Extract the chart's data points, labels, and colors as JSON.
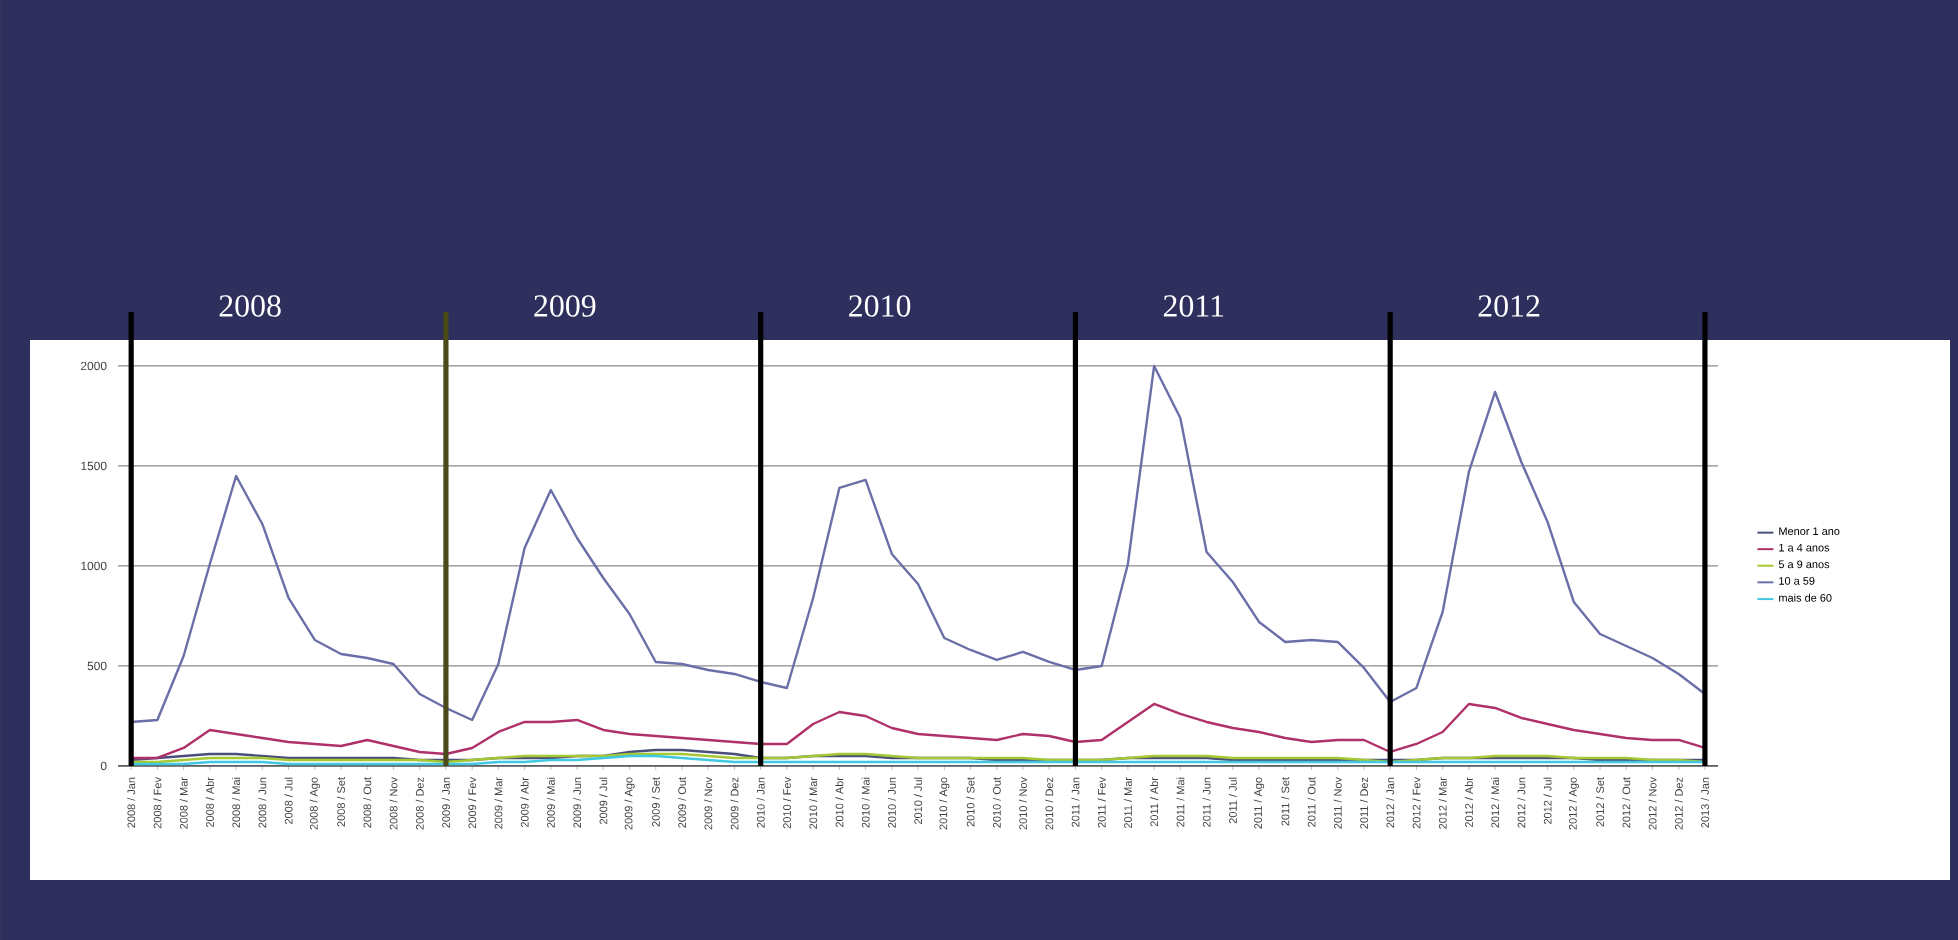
{
  "chart_data": {
    "type": "line",
    "categories": [
      "2008 / Jan",
      "2008 / Fev",
      "2008 / Mar",
      "2008 / Abr",
      "2008 / Mai",
      "2008 / Jun",
      "2008 / Jul",
      "2008 / Ago",
      "2008 / Set",
      "2008 / Out",
      "2008 / Nov",
      "2008 / Dez",
      "2009 / Jan",
      "2009 / Fev",
      "2009 / Mar",
      "2009 / Abr",
      "2009 / Mai",
      "2009 / Jun",
      "2009 / Jul",
      "2009 / Ago",
      "2009 / Set",
      "2009 / Out",
      "2009 / Nov",
      "2009 / Dez",
      "2010 / Jan",
      "2010 / Fev",
      "2010 / Mar",
      "2010 / Abr",
      "2010 / Mai",
      "2010 / Jun",
      "2010 / Jul",
      "2010 / Ago",
      "2010 / Set",
      "2010 / Out",
      "2010 / Nov",
      "2010 / Dez",
      "2011 / Jan",
      "2011 / Fev",
      "2011 / Mar",
      "2011 / Abr",
      "2011 / Mai",
      "2011 / Jun",
      "2011 / Jul",
      "2011 / Ago",
      "2011 / Set",
      "2011 / Out",
      "2011 / Nov",
      "2011 / Dez",
      "2012 / Jan",
      "2012 / Fev",
      "2012 / Mar",
      "2012 / Abr",
      "2012 / Mai",
      "2012 / Jun",
      "2012 / Jul",
      "2012 / Ago",
      "2012 / Set",
      "2012 / Out",
      "2012 / Nov",
      "2012 / Dez",
      "2013 / Jan"
    ],
    "series": [
      {
        "name": "Menor 1 ano",
        "color": "#4a4f7a",
        "values": [
          30,
          40,
          50,
          60,
          60,
          50,
          40,
          40,
          40,
          40,
          40,
          30,
          30,
          30,
          40,
          40,
          40,
          50,
          50,
          70,
          80,
          80,
          70,
          60,
          40,
          40,
          50,
          50,
          50,
          40,
          40,
          40,
          40,
          30,
          30,
          30,
          30,
          30,
          40,
          40,
          40,
          40,
          30,
          30,
          30,
          30,
          30,
          30,
          30,
          30,
          40,
          40,
          40,
          40,
          40,
          40,
          30,
          30,
          30,
          30,
          30
        ]
      },
      {
        "name": "1 a 4 anos",
        "color": "#b0306a",
        "values": [
          40,
          40,
          90,
          180,
          160,
          140,
          120,
          110,
          100,
          130,
          100,
          70,
          60,
          90,
          170,
          220,
          220,
          230,
          180,
          160,
          150,
          140,
          130,
          120,
          110,
          110,
          210,
          270,
          250,
          190,
          160,
          150,
          140,
          130,
          160,
          150,
          120,
          130,
          220,
          310,
          260,
          220,
          190,
          170,
          140,
          120,
          130,
          130,
          70,
          110,
          170,
          310,
          290,
          240,
          210,
          180,
          160,
          140,
          130,
          130,
          90
        ]
      },
      {
        "name": "5 a 9 anos",
        "color": "#a6c832",
        "values": [
          20,
          20,
          30,
          40,
          40,
          40,
          30,
          30,
          30,
          30,
          30,
          30,
          20,
          30,
          40,
          50,
          50,
          50,
          50,
          60,
          60,
          60,
          50,
          40,
          40,
          40,
          50,
          60,
          60,
          50,
          40,
          40,
          40,
          40,
          40,
          30,
          30,
          30,
          40,
          50,
          50,
          50,
          40,
          40,
          40,
          40,
          40,
          30,
          20,
          30,
          40,
          40,
          50,
          50,
          50,
          40,
          40,
          40,
          30,
          30,
          20
        ]
      },
      {
        "name": "10 a 59",
        "color": "#6b6fa8",
        "values": [
          220,
          230,
          550,
          1010,
          1450,
          1210,
          840,
          630,
          560,
          540,
          510,
          360,
          290,
          230,
          510,
          1090,
          1380,
          1140,
          940,
          760,
          520,
          510,
          480,
          460,
          420,
          390,
          840,
          1390,
          1430,
          1060,
          910,
          640,
          580,
          530,
          570,
          520,
          480,
          500,
          1010,
          2000,
          1740,
          1070,
          920,
          720,
          620,
          630,
          620,
          490,
          320,
          390,
          770,
          1470,
          1870,
          1520,
          1220,
          820,
          660,
          600,
          540,
          460,
          360
        ]
      },
      {
        "name": "mais de 60",
        "color": "#40c8e0",
        "values": [
          10,
          10,
          10,
          20,
          20,
          20,
          10,
          10,
          10,
          10,
          10,
          10,
          10,
          10,
          20,
          20,
          30,
          30,
          40,
          50,
          50,
          40,
          30,
          20,
          20,
          20,
          20,
          20,
          20,
          20,
          20,
          20,
          20,
          20,
          20,
          20,
          20,
          20,
          20,
          20,
          20,
          20,
          20,
          20,
          20,
          20,
          20,
          20,
          20,
          20,
          20,
          20,
          20,
          20,
          20,
          20,
          20,
          20,
          20,
          20,
          20
        ]
      }
    ],
    "ylim": [
      0,
      2000
    ],
    "yticks": [
      0,
      500,
      1000,
      1500,
      2000
    ],
    "grid": "y",
    "legend": "right",
    "marker": "none",
    "line_style": "solid",
    "ref_lines": [
      {
        "axis": "x",
        "value": "2008 / Jan",
        "label": "2008",
        "color": "#000000"
      },
      {
        "axis": "x",
        "value": "2009 / Jan",
        "label": "2009",
        "color": "#4a4a18"
      },
      {
        "axis": "x",
        "value": "2010 / Jan",
        "label": "2010",
        "color": "#000000"
      },
      {
        "axis": "x",
        "value": "2011 / Jan",
        "label": "2011",
        "color": "#000000"
      },
      {
        "axis": "x",
        "value": "2012 / Jan",
        "label": "2012",
        "color": "#000000"
      },
      {
        "axis": "x",
        "value": "2013 / Jan",
        "label": null,
        "color": "#000000"
      }
    ]
  }
}
